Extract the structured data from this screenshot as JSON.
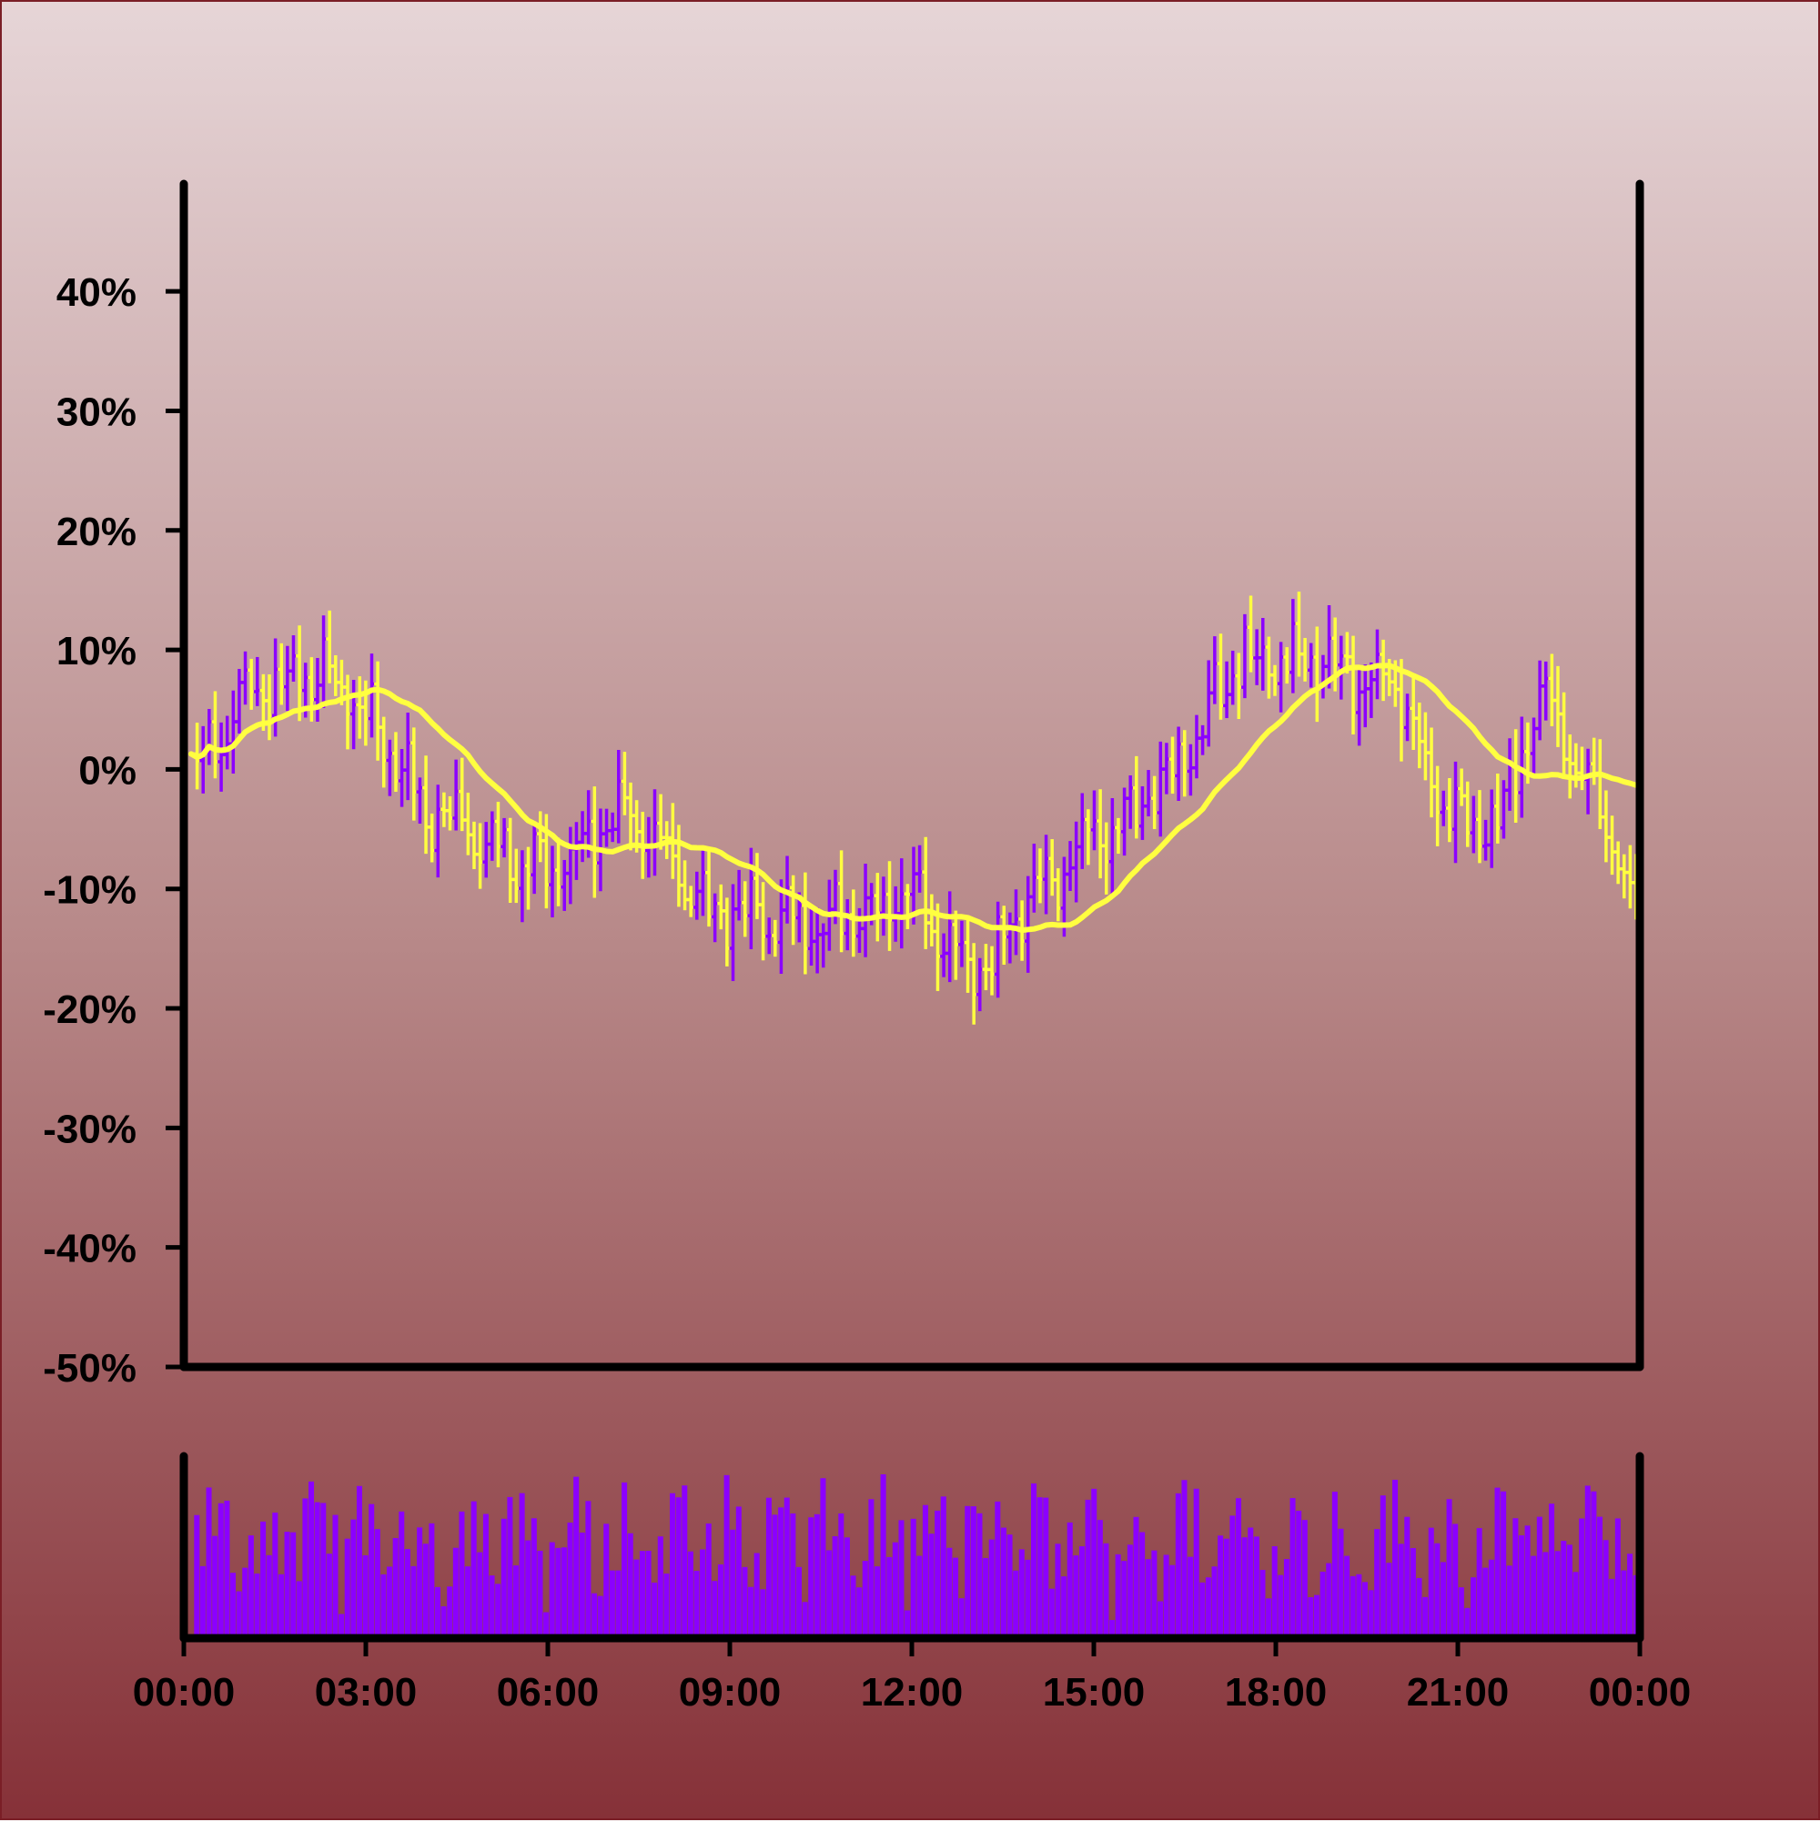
{
  "chart_data": {
    "type": "ohlc",
    "title": "",
    "xlabel": "",
    "ylabel": "",
    "x_start": "00:00",
    "x_end": "00:00",
    "x_ticks": [
      "00:00",
      "03:00",
      "06:00",
      "09:00",
      "12:00",
      "15:00",
      "18:00",
      "21:00",
      "00:00"
    ],
    "y_ticks": [
      "40%",
      "30%",
      "20%",
      "10%",
      "0%",
      "-10%",
      "-20%",
      "-30%",
      "-40%",
      "-50%"
    ],
    "y_tick_values": [
      40,
      30,
      20,
      10,
      0,
      -10,
      -20,
      -30,
      -40,
      -50
    ],
    "ylim": [
      -50,
      49
    ],
    "grid": false,
    "legend": "none",
    "bar_interval_minutes": 6,
    "overlay": {
      "type": "moving-average",
      "color": "#ffff40"
    },
    "volume_panel": {
      "type": "bar",
      "color": "#8b00ff",
      "scale": "relative"
    },
    "colors": {
      "up": "#8b00ff",
      "down": "#ffff40",
      "moving_average": "#ffff40",
      "volume": "#8b00ff",
      "axis": "#000000"
    },
    "anchor_points": [
      {
        "time": "00:00",
        "value": 0
      },
      {
        "time": "01:15",
        "value": 7
      },
      {
        "time": "02:15",
        "value": 8
      },
      {
        "time": "03:00",
        "value": 4
      },
      {
        "time": "04:00",
        "value": -4
      },
      {
        "time": "05:45",
        "value": -8
      },
      {
        "time": "07:15",
        "value": -4
      },
      {
        "time": "08:45",
        "value": -12
      },
      {
        "time": "10:15",
        "value": -13
      },
      {
        "time": "12:00",
        "value": -11
      },
      {
        "time": "13:00",
        "value": -17
      },
      {
        "time": "14:15",
        "value": -9
      },
      {
        "time": "15:15",
        "value": -5
      },
      {
        "time": "16:15",
        "value": 0
      },
      {
        "time": "17:30",
        "value": 9
      },
      {
        "time": "18:45",
        "value": 9
      },
      {
        "time": "20:00",
        "value": 7
      },
      {
        "time": "20:45",
        "value": -3
      },
      {
        "time": "21:30",
        "value": -5
      },
      {
        "time": "22:30",
        "value": 5
      },
      {
        "time": "23:15",
        "value": -2
      },
      {
        "time": "24:00",
        "value": -11
      }
    ]
  }
}
